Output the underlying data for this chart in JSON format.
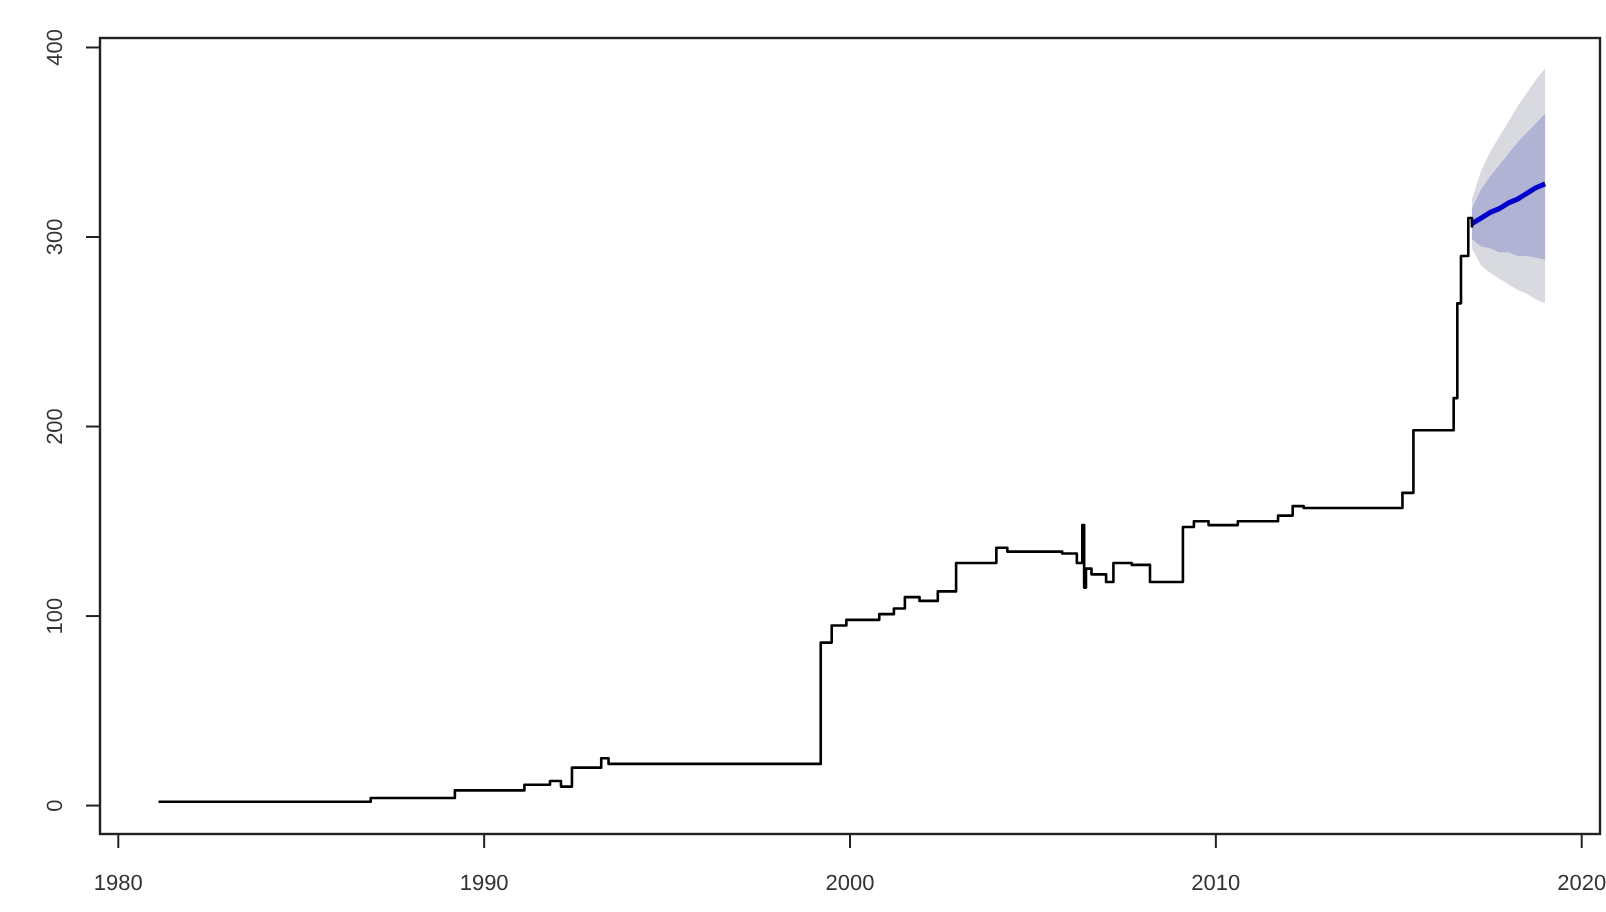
{
  "chart_data": {
    "type": "line",
    "xlim": [
      1979.5,
      2020.5
    ],
    "ylim": [
      -15,
      405
    ],
    "xticks": [
      1980,
      1990,
      2000,
      2010,
      2020
    ],
    "yticks": [
      0,
      100,
      200,
      300,
      400
    ],
    "grid": false,
    "series": [
      {
        "type": "area",
        "color": "#d9d9e0",
        "x": [
          2017,
          2017.25,
          2017.5,
          2017.75,
          2018,
          2018.25,
          2018.5,
          2018.75,
          2019
        ],
        "values": [
          null,
          null,
          null,
          null,
          null,
          null,
          null,
          null,
          null
        ],
        "lower": [
          294,
          285,
          281,
          278,
          275,
          272,
          270,
          267,
          265
        ],
        "upper": [
          320,
          335,
          345,
          353,
          361,
          369,
          376,
          383,
          389
        ]
      },
      {
        "color": "#0000cc",
        "x": [
          2017,
          2017.25,
          2017.5,
          2017.75,
          2018,
          2018.25,
          2018.5,
          2018.75,
          2019
        ],
        "values": [
          307,
          310,
          313,
          315,
          318,
          320,
          323,
          326,
          328
        ],
        "lower": [
          299,
          295,
          294,
          292,
          292,
          290,
          290,
          289,
          288
        ],
        "upper": [
          315,
          325,
          332,
          338,
          344,
          350,
          355,
          360,
          365
        ]
      },
      {
        "type": "step",
        "color": "#000000",
        "x": [
          1981.1,
          1986.9,
          1989.2,
          1991.1,
          1991.8,
          1992.1,
          1992.4,
          1993.2,
          1993.4,
          1999.2,
          1999.5,
          1999.9,
          2000.8,
          2001.2,
          2001.5,
          2001.9,
          2002.4,
          2002.9,
          2004,
          2004.3,
          2005.8,
          2006.2,
          2006.35,
          2006.4,
          2006.45,
          2006.6,
          2007,
          2007.2,
          2007.7,
          2008.2,
          2009.1,
          2009.4,
          2009.8,
          2010.6,
          2011.7,
          2012.1,
          2012.4,
          2015.1,
          2015.4,
          2016.5,
          2016.6,
          2016.7,
          2016.9,
          2017
        ],
        "values": [
          2,
          4,
          8,
          11,
          13,
          10,
          20,
          25,
          22,
          86,
          95,
          98,
          101,
          104,
          110,
          108,
          113,
          128,
          136,
          134,
          133,
          128,
          148,
          115,
          125,
          122,
          118,
          128,
          127,
          118,
          147,
          150,
          148,
          150,
          153,
          158,
          157,
          165,
          198,
          215,
          265,
          290,
          310,
          305
        ]
      }
    ]
  }
}
